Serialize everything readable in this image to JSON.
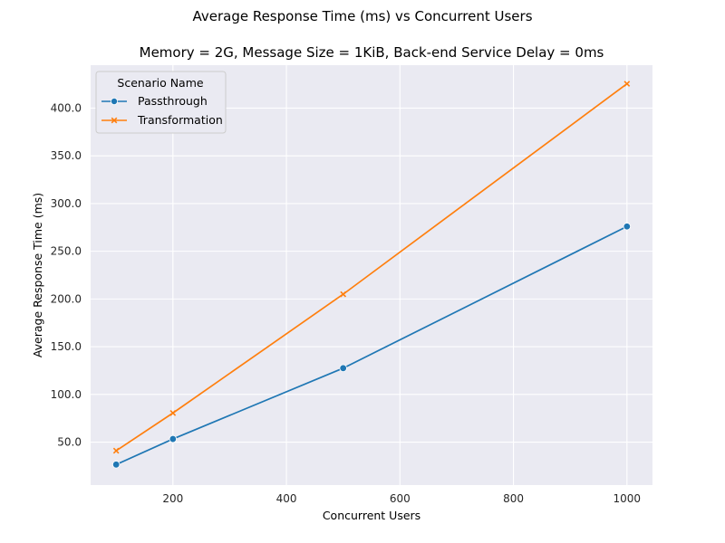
{
  "chart_data": {
    "type": "line",
    "title": "Average Response Time (ms) vs Concurrent Users",
    "subtitle": "Memory = 2G, Message Size = 1KiB, Back-end Service Delay = 0ms",
    "xlabel": "Concurrent Users",
    "ylabel": "Average Response Time (ms)",
    "x": [
      100,
      200,
      500,
      1000
    ],
    "xlim": [
      55,
      1045
    ],
    "ylim": [
      5,
      445
    ],
    "xticks": [
      "200",
      "400",
      "600",
      "800",
      "1000"
    ],
    "yticks": [
      "50.0",
      "100.0",
      "150.0",
      "200.0",
      "250.0",
      "300.0",
      "350.0",
      "400.0"
    ],
    "grid": true,
    "legend": {
      "title": "Scenario Name",
      "placement": "top-left"
    },
    "series": [
      {
        "name": "Passthrough",
        "values": [
          26.5,
          53.3,
          127.5,
          276.0
        ],
        "color": "#1f77b4",
        "marker": "circle"
      },
      {
        "name": "Transformation",
        "values": [
          41.0,
          80.5,
          205.0,
          425.5
        ],
        "color": "#ff7f0e",
        "marker": "x"
      }
    ]
  }
}
